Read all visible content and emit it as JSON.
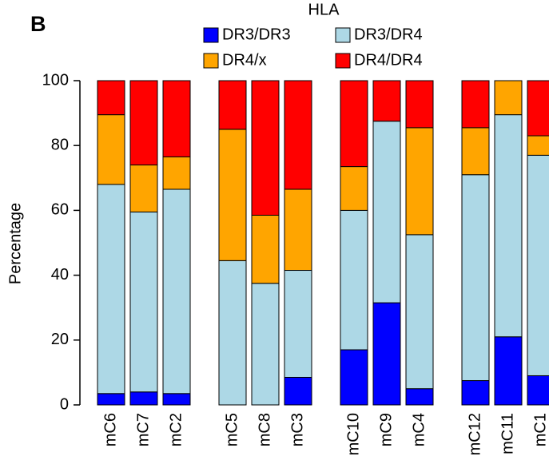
{
  "panel_label": "B",
  "chart_data": {
    "type": "stacked_bar",
    "ylabel": "Percentage",
    "legend_title": "HLA",
    "legend_position": "top",
    "categories": [
      "mC6",
      "mC7",
      "mC2",
      "mC5",
      "mC8",
      "mC3",
      "mC10",
      "mC9",
      "mC4",
      "mC12",
      "mC11",
      "mC1"
    ],
    "series": [
      {
        "name": "DR3/DR3",
        "color": "#0000ff",
        "values": [
          3.5,
          4,
          3.5,
          0,
          0,
          8.5,
          17,
          31.5,
          5,
          7.5,
          21,
          9
        ]
      },
      {
        "name": "DR3/DR4",
        "color": "#add8e6",
        "values": [
          64.5,
          55.5,
          63,
          44.5,
          37.5,
          33,
          43,
          56,
          47.5,
          63.5,
          68.5,
          68
        ]
      },
      {
        "name": "DR4/x",
        "color": "#ffa500",
        "values": [
          21.5,
          14.5,
          10,
          40.5,
          21,
          25,
          13.5,
          0,
          33,
          14.5,
          10.5,
          6
        ]
      },
      {
        "name": "DR4/DR4",
        "color": "#ff0000",
        "values": [
          10.5,
          26,
          23.5,
          15,
          41.5,
          33.5,
          26.5,
          12.5,
          14.5,
          14.5,
          0,
          17
        ]
      }
    ],
    "ylim": [
      0,
      100
    ],
    "yticks": [
      0,
      20,
      40,
      60,
      80,
      100
    ]
  }
}
